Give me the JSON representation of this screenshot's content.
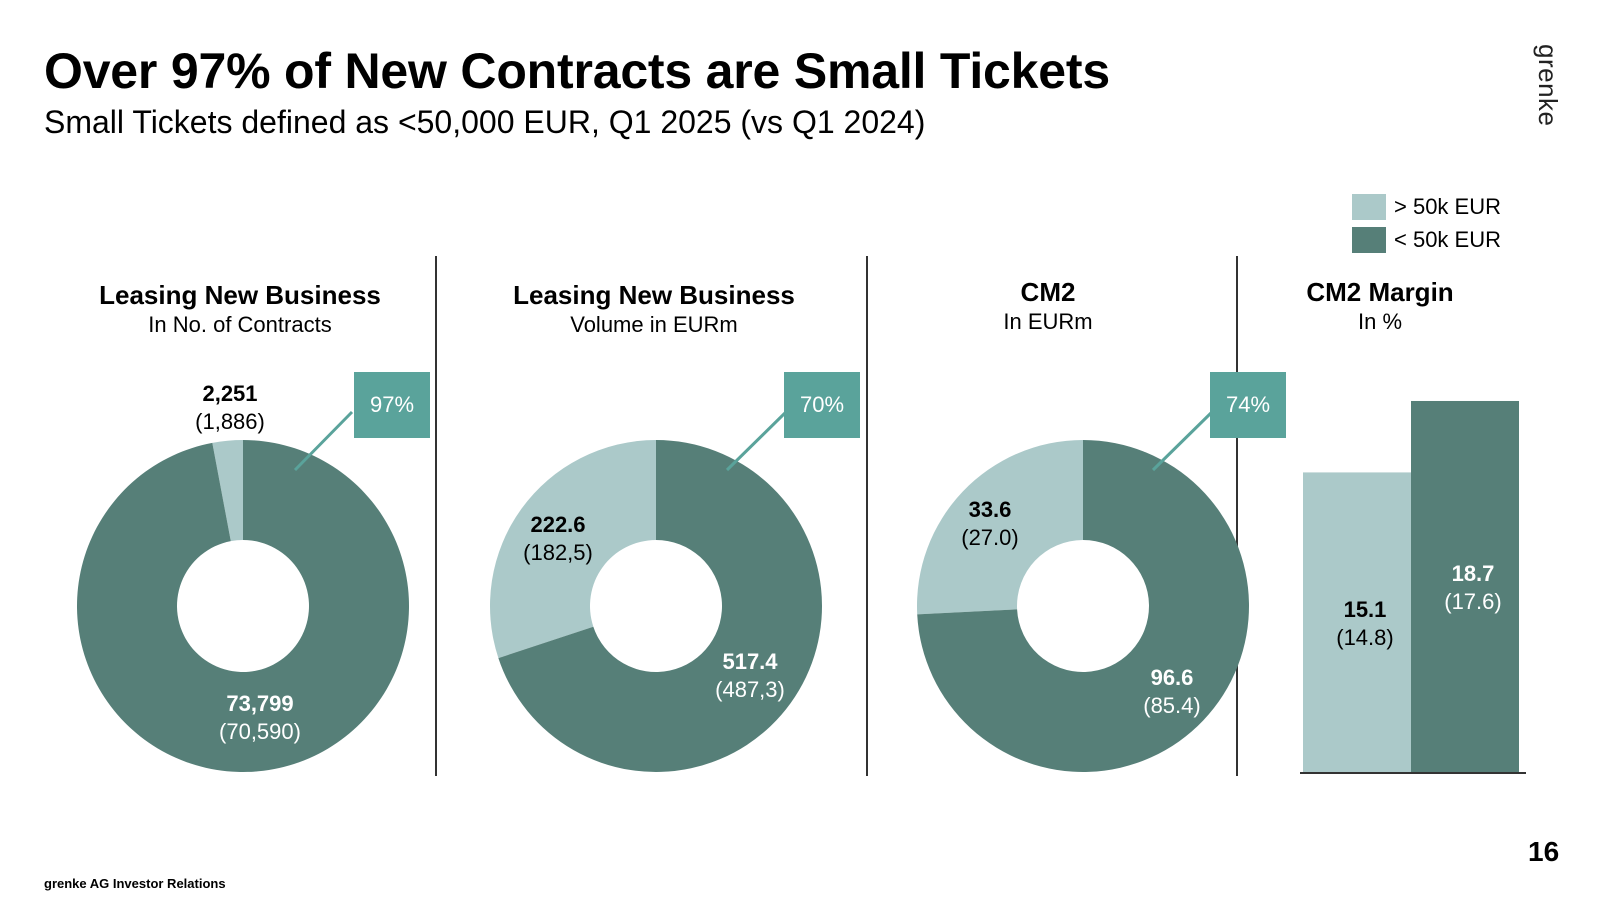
{
  "header": {
    "title": "Over 97% of New Contracts are Small Tickets",
    "subtitle": "Small Tickets defined as <50,000 EUR, Q1 2025 (vs Q1 2024)",
    "brand": "grenke"
  },
  "legend": [
    {
      "label": "> 50k EUR",
      "color": "#abc9c9"
    },
    {
      "label": "< 50k EUR",
      "color": "#567f78"
    }
  ],
  "colors": {
    "light": "#abc9c9",
    "dark": "#567f78",
    "callout": "#5aa39b"
  },
  "chart_data": [
    {
      "type": "pie",
      "title": "Leasing New Business",
      "subtitle": "In No. of Contracts",
      "callout": "97%",
      "slices": [
        {
          "name": "> 50k EUR",
          "value": 2251,
          "label": "2,251",
          "prior": "(1,886)"
        },
        {
          "name": "< 50k EUR",
          "value": 73799,
          "label": "73,799",
          "prior": "(70,590)"
        }
      ]
    },
    {
      "type": "pie",
      "title": "Leasing New Business",
      "subtitle": "Volume in EURm",
      "callout": "70%",
      "slices": [
        {
          "name": "> 50k EUR",
          "value": 222.6,
          "label": "222.6",
          "prior": "(182,5)"
        },
        {
          "name": "< 50k EUR",
          "value": 517.4,
          "label": "517.4",
          "prior": "(487,3)"
        }
      ]
    },
    {
      "type": "pie",
      "title": "CM2",
      "subtitle": "In EURm",
      "callout": "74%",
      "slices": [
        {
          "name": "> 50k EUR",
          "value": 33.6,
          "label": "33.6",
          "prior": "(27.0)"
        },
        {
          "name": "< 50k EUR",
          "value": 96.6,
          "label": "96.6",
          "prior": "(85.4)"
        }
      ]
    },
    {
      "type": "bar",
      "title": "CM2 Margin",
      "subtitle": "In %",
      "categories": [
        "> 50k EUR",
        "< 50k EUR"
      ],
      "values": [
        15.1,
        18.7
      ],
      "labels": [
        "15.1",
        "18.7"
      ],
      "priors": [
        "(14.8)",
        "(17.6)"
      ],
      "ylim": [
        0,
        20
      ]
    }
  ],
  "footer": {
    "page_number": "16",
    "source": "grenke AG Investor Relations"
  }
}
